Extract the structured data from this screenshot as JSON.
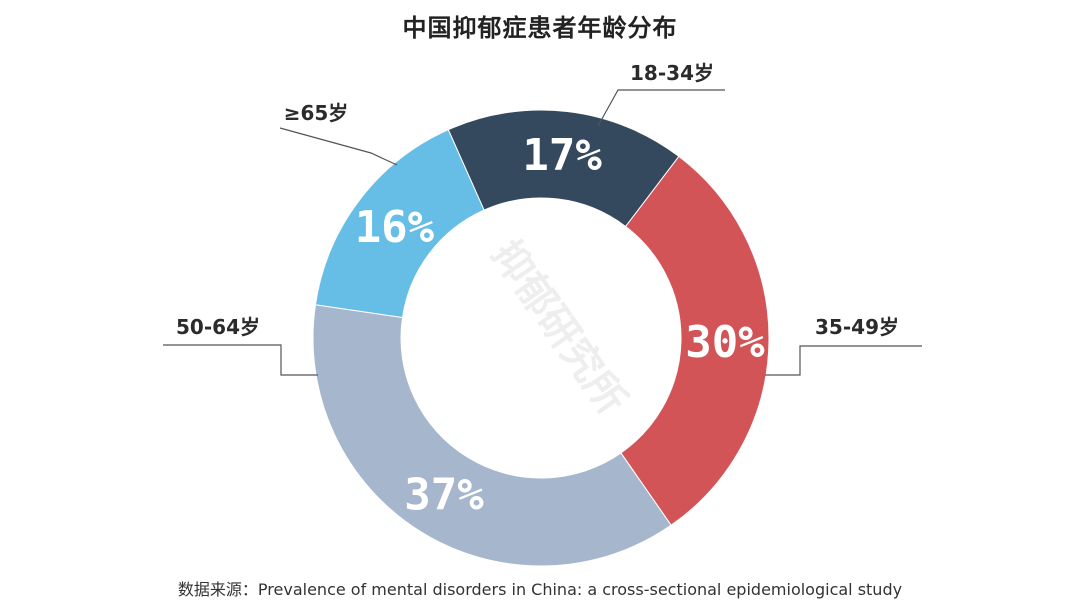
{
  "title": "中国抑郁症患者年龄分布",
  "watermark": "抑郁研究所",
  "source_prefix": "数据来源：",
  "source_text": "Prevalence of mental disorders in China: a cross-sectional  epidemiological study",
  "chart_data": {
    "type": "pie",
    "donut": true,
    "title": "中国抑郁症患者年龄分布",
    "categories": [
      "18-34岁",
      "35-49岁",
      "50-64岁",
      "≥65岁"
    ],
    "values": [
      17,
      30,
      37,
      16
    ],
    "value_labels": [
      "17%",
      "30%",
      "37%",
      "16%"
    ],
    "colors": [
      "#34495e",
      "#d35457",
      "#a6b7cd",
      "#66bde6"
    ],
    "legend": "leader-line labels outside slices"
  }
}
